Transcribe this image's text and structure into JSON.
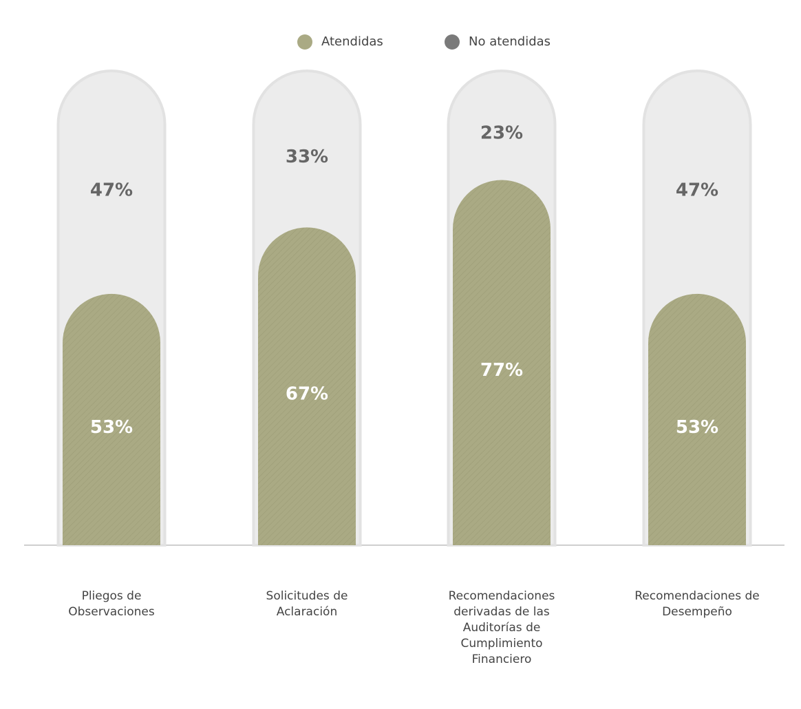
{
  "chart_data": {
    "type": "stacked-bar",
    "categories": [
      "Pliegos de Observaciones",
      "Solicitudes de Aclaración",
      "Recomendaciones derivadas de las Auditorías de Cumplimiento Financiero",
      "Recomendaciones de Desempeño"
    ],
    "series": [
      {
        "name": "Atendidas",
        "color": "#aaaa84",
        "values": [
          53,
          67,
          77,
          53
        ],
        "value_labels": [
          "53%",
          "67%",
          "77%",
          "53%"
        ]
      },
      {
        "name": "No atendidas",
        "color": "#7a7a7a",
        "values": [
          47,
          33,
          23,
          47
        ],
        "value_labels": [
          "47%",
          "33%",
          "23%",
          "47%"
        ]
      }
    ],
    "legend": "top"
  }
}
